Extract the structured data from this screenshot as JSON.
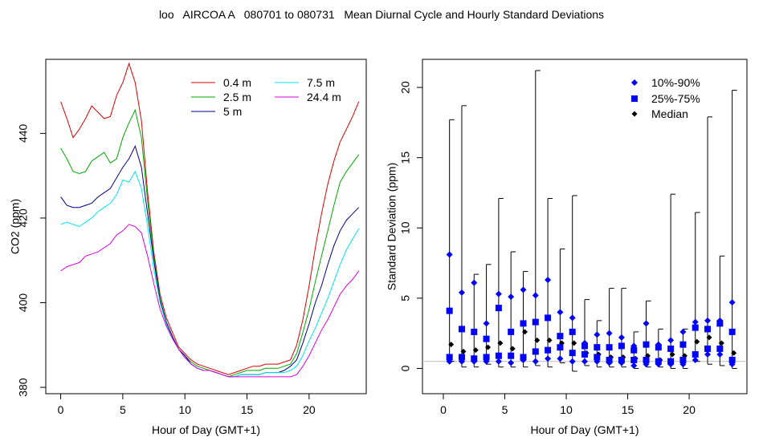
{
  "title": "loo   AIRCOA A   080701 to 080731   Mean Diurnal Cycle and Hourly Standard Deviations",
  "chart_data": [
    {
      "type": "line",
      "xlabel": "Hour of Day (GMT+1)",
      "ylabel": "CO2 (ppm)",
      "xlim": [
        -1.2,
        24.6
      ],
      "ylim": [
        378.5,
        457.5
      ],
      "xticks": [
        0,
        5,
        10,
        15,
        20
      ],
      "yticks": [
        380,
        400,
        420,
        440
      ],
      "legend_position": "top-right",
      "x": [
        0,
        0.5,
        1,
        1.5,
        2,
        2.5,
        3,
        3.5,
        4,
        4.5,
        5,
        5.5,
        6,
        6.5,
        7,
        7.5,
        8,
        8.5,
        9,
        9.5,
        10,
        10.5,
        11,
        11.5,
        12,
        12.5,
        13,
        13.5,
        14,
        14.5,
        15,
        15.5,
        16,
        16.5,
        17,
        17.5,
        18,
        18.5,
        19,
        19.5,
        20,
        20.5,
        21,
        21.5,
        22,
        22.5,
        23,
        23.5,
        24
      ],
      "series": [
        {
          "name": "0.4 m",
          "color": "#dd0000",
          "values": [
            447.5,
            443.5,
            439,
            441,
            443.5,
            446.5,
            445,
            443.5,
            444,
            449,
            452,
            456.5,
            452,
            443,
            426,
            412,
            402,
            396.5,
            393,
            389.5,
            388,
            386.5,
            385.5,
            385,
            384.5,
            384,
            383.5,
            383,
            383.5,
            384,
            384.5,
            385,
            385,
            385.5,
            385.5,
            385.5,
            386,
            386.5,
            390,
            396,
            404,
            413,
            421,
            428,
            433.5,
            438,
            441,
            444,
            447.5
          ]
        },
        {
          "name": "2.5 m",
          "color": "#00aa00",
          "values": [
            436.5,
            434,
            431,
            430.5,
            431,
            433.5,
            434.5,
            435.5,
            433,
            434,
            439,
            442.5,
            445.5,
            439,
            424,
            411,
            401,
            395.5,
            392,
            389,
            387.5,
            386,
            385,
            384.5,
            384,
            383.5,
            383,
            382.5,
            383,
            383.5,
            384,
            384,
            384,
            384.5,
            384.5,
            384.5,
            385,
            385.5,
            388,
            393,
            398.5,
            405,
            411,
            417,
            423,
            428.5,
            431,
            433,
            435
          ]
        },
        {
          "name": "5 m",
          "color": "#00008b",
          "values": [
            425,
            423,
            422.5,
            422.5,
            423,
            423.5,
            425,
            426,
            427,
            429.5,
            432,
            434,
            437,
            432,
            421,
            410,
            400.5,
            395.5,
            392,
            389,
            387.5,
            385.5,
            384.5,
            384,
            384,
            383.5,
            383,
            382.5,
            382.5,
            383,
            383,
            383,
            383,
            383.5,
            383.5,
            383.5,
            384,
            385,
            386.5,
            390.5,
            395,
            400,
            404,
            409,
            413.5,
            417,
            419.5,
            421,
            422.5
          ]
        },
        {
          "name": "7.5 m",
          "color": "#00e5ee",
          "values": [
            418.5,
            419,
            418.5,
            418,
            419,
            420,
            421.5,
            422.5,
            423.5,
            425.5,
            429,
            428.5,
            431,
            427,
            418,
            408,
            400,
            395,
            391.5,
            389,
            387,
            385.5,
            384.5,
            384,
            384,
            383.5,
            383,
            382.5,
            382.5,
            383,
            383,
            383,
            383,
            383.5,
            383.5,
            383.5,
            383.5,
            384,
            385,
            387.5,
            391,
            394,
            397.5,
            401,
            405,
            409,
            412.5,
            415,
            417.5
          ]
        },
        {
          "name": "24.4 m",
          "color": "#dd00dd",
          "values": [
            407.5,
            408.5,
            409,
            409.5,
            411,
            411.5,
            412,
            413,
            414,
            416,
            417,
            418.5,
            418,
            416.5,
            411,
            404.5,
            398.5,
            394.5,
            391.5,
            389,
            387,
            385.5,
            384.5,
            384,
            384,
            383.5,
            383,
            382.5,
            382.5,
            382.5,
            382.5,
            382.5,
            382.5,
            382.5,
            382.5,
            382.5,
            382.5,
            382.5,
            383,
            385,
            387.5,
            390.5,
            393.5,
            396,
            399,
            402,
            404,
            405.5,
            407.5
          ]
        }
      ]
    },
    {
      "type": "scatter",
      "xlabel": "Hour of Day (GMT+1)",
      "ylabel": "Standard Deviation (ppm)",
      "xlim": [
        -1.7,
        24.7
      ],
      "ylim": [
        -1.8,
        22
      ],
      "xticks": [
        0,
        5,
        10,
        15,
        20
      ],
      "yticks": [
        0,
        5,
        10,
        15,
        20
      ],
      "reference_line": 0.5,
      "legend_position": "top-right",
      "legend": [
        {
          "label": "10%-90%",
          "marker": "diamond",
          "color": "#0000ff"
        },
        {
          "label": "25%-75%",
          "marker": "square",
          "color": "#0000ff"
        },
        {
          "label": "Median",
          "marker": "diamond",
          "color": "#000000"
        }
      ],
      "hours": [
        0.5,
        1.5,
        2.5,
        3.5,
        4.5,
        5.5,
        6.5,
        7.5,
        8.5,
        9.5,
        10.5,
        11.5,
        12.5,
        13.5,
        14.5,
        15.5,
        16.5,
        17.5,
        18.5,
        19.5,
        20.5,
        21.5,
        22.5,
        23.5
      ],
      "whisker_top": [
        17.7,
        18.7,
        6.7,
        7.4,
        12.1,
        8.3,
        6.9,
        21.2,
        12.1,
        8.5,
        12.3,
        4.9,
        3.4,
        5.7,
        5.7,
        2.6,
        4.8,
        2.8,
        12.4,
        2.8,
        11.1,
        17.9,
        8.0,
        19.8
      ],
      "whisker_bottom": [
        0.5,
        0.1,
        0.1,
        0.3,
        0.1,
        0.1,
        0.1,
        0.2,
        0.1,
        0.4,
        -0.2,
        0.2,
        0.1,
        0.1,
        0.1,
        0.0,
        0.1,
        0.1,
        0.0,
        0.0,
        0.5,
        0.3,
        0.2,
        0.0
      ],
      "p90": [
        8.1,
        5.4,
        6.1,
        3.2,
        5.3,
        5.1,
        5.6,
        5.2,
        6.3,
        4.0,
        3.6,
        1.8,
        2.4,
        2.5,
        2.2,
        1.6,
        3.2,
        1.7,
        2.0,
        2.6,
        3.3,
        3.4,
        3.4,
        4.7
      ],
      "p75": [
        4.1,
        2.8,
        2.6,
        2.1,
        4.3,
        2.6,
        3.2,
        3.3,
        3.6,
        2.3,
        2.6,
        1.6,
        1.5,
        1.5,
        1.6,
        1.3,
        1.7,
        1.5,
        1.4,
        1.7,
        2.9,
        2.8,
        3.2,
        2.6
      ],
      "median": [
        1.7,
        1.2,
        1.3,
        1.5,
        1.8,
        1.4,
        2.6,
        2.0,
        2.0,
        1.8,
        1.8,
        1.1,
        1.0,
        0.8,
        0.8,
        0.7,
        0.9,
        0.6,
        1.0,
        0.9,
        1.9,
        2.2,
        1.8,
        1.1
      ],
      "p25": [
        0.8,
        0.8,
        0.7,
        0.8,
        0.9,
        0.9,
        0.8,
        1.2,
        1.3,
        1.5,
        1.1,
        1.0,
        0.8,
        0.6,
        0.6,
        0.6,
        0.6,
        0.5,
        0.5,
        0.6,
        1.0,
        1.4,
        1.4,
        0.6
      ],
      "p10": [
        0.5,
        0.5,
        0.5,
        0.5,
        0.5,
        0.4,
        0.6,
        0.5,
        0.7,
        0.7,
        0.5,
        0.5,
        0.5,
        0.4,
        0.4,
        0.2,
        0.3,
        0.3,
        0.3,
        0.3,
        0.6,
        1.0,
        1.0,
        0.3
      ]
    }
  ]
}
